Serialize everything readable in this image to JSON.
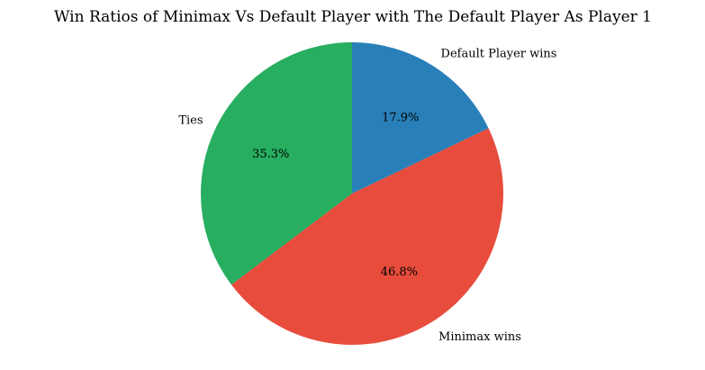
{
  "chart_data": {
    "type": "pie",
    "title": "Win Ratios of Minimax Vs Default Player with The Default Player As Player 1",
    "start_angle_deg": 90,
    "direction": "clockwise",
    "slices": [
      {
        "label": "Default Player wins",
        "value": 17.9,
        "pct_label": "17.9%",
        "color": "#2980b9"
      },
      {
        "label": "Minimax wins",
        "value": 46.8,
        "pct_label": "46.8%",
        "color": "#e74c3c"
      },
      {
        "label": "Ties",
        "value": 35.3,
        "pct_label": "35.3%",
        "color": "#27ae60"
      }
    ]
  }
}
